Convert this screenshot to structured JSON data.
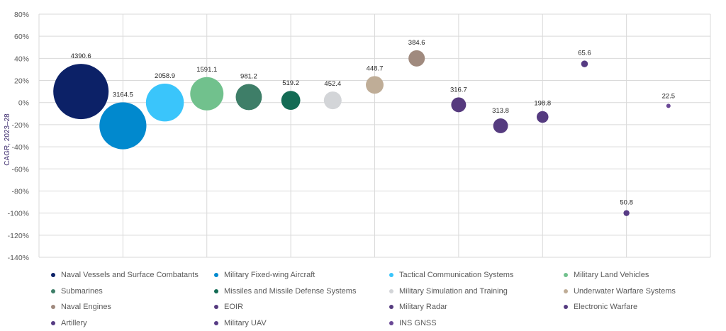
{
  "chart_data": {
    "type": "bubble",
    "ylabel": "CAGR, 2023–28",
    "ylim": [
      -140,
      80
    ],
    "ytick_step": 20,
    "ytick_labels": [
      "80%",
      "60%",
      "40%",
      "20%",
      "0%",
      "-20%",
      "-40%",
      "-60%",
      "-80%",
      "-100%",
      "-120%",
      "-140%"
    ],
    "x_count": 16,
    "grid": "major",
    "legend_position": "bottom",
    "series": [
      {
        "name": "Naval Vessels and Surface Combatants",
        "x": 1,
        "y": 10,
        "size": 4390.6,
        "size_label": "4390.6",
        "color": "#0c2167"
      },
      {
        "name": "Military Fixed-wing Aircraft",
        "x": 2,
        "y": -21,
        "size": 3164.5,
        "size_label": "3164.5",
        "color": "#0189ce"
      },
      {
        "name": "Tactical Communication Systems",
        "x": 3,
        "y": 0,
        "size": 2058.9,
        "size_label": "2058.9",
        "color": "#3ac5fb"
      },
      {
        "name": "Military Land Vehicles",
        "x": 4,
        "y": 8,
        "size": 1591.1,
        "size_label": "1591.1",
        "color": "#71c18d"
      },
      {
        "name": "Submarines",
        "x": 5,
        "y": 5,
        "size": 981.2,
        "size_label": "981.2",
        "color": "#3e7e68"
      },
      {
        "name": "Missiles and Missile Defense Systems",
        "x": 6,
        "y": 2,
        "size": 519.2,
        "size_label": "519.2",
        "color": "#136b54"
      },
      {
        "name": "Military Simulation and Training",
        "x": 7,
        "y": 2,
        "size": 452.4,
        "size_label": "452.4",
        "color": "#d3d5d8"
      },
      {
        "name": "Underwater Warfare Systems",
        "x": 8,
        "y": 16,
        "size": 448.7,
        "size_label": "448.7",
        "color": "#bfad97"
      },
      {
        "name": "Naval Engines",
        "x": 9,
        "y": 40,
        "size": 384.6,
        "size_label": "384.6",
        "color": "#a08a7e"
      },
      {
        "name": "EOIR",
        "x": 10,
        "y": -2,
        "size": 316.7,
        "size_label": "316.7",
        "color": "#563a7e"
      },
      {
        "name": "Military Radar",
        "x": 11,
        "y": -21,
        "size": 313.8,
        "size_label": "313.8",
        "color": "#553b7f"
      },
      {
        "name": "Electronic Warfare",
        "x": 12,
        "y": -13,
        "size": 198.8,
        "size_label": "198.8",
        "color": "#553b80"
      },
      {
        "name": "Artillery",
        "x": 13,
        "y": 35,
        "size": 65.6,
        "size_label": "65.6",
        "color": "#563b83"
      },
      {
        "name": "Military UAV",
        "x": 14,
        "y": -100,
        "size": 50.8,
        "size_label": "50.8",
        "color": "#583c86"
      },
      {
        "name": "INS GNSS",
        "x": 15,
        "y": -3,
        "size": 22.5,
        "size_label": "22.5",
        "color": "#6a4896"
      }
    ]
  }
}
